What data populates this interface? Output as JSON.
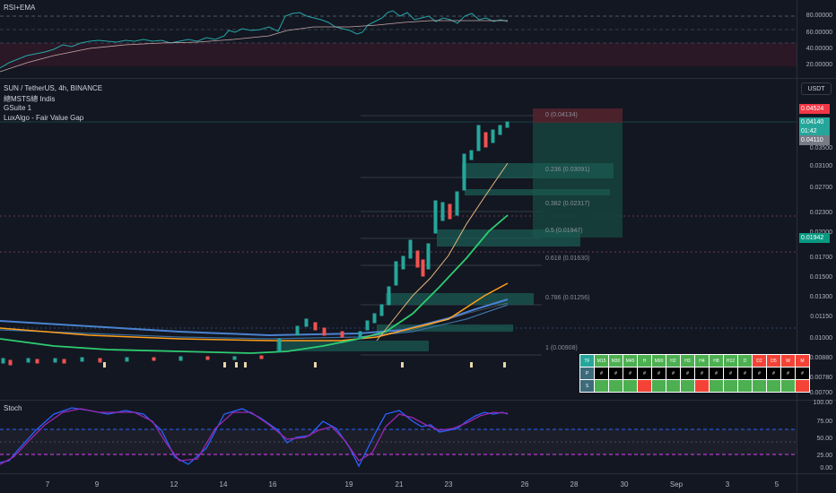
{
  "rsi_pane": {
    "title": "RSI+EMA",
    "ticks": [
      "80.00000",
      "60.00000",
      "40.00000",
      "20.00000"
    ]
  },
  "main_pane": {
    "title": "SUN / TetherUS, 4h, BINANCE",
    "indicators": [
      "總MSTS總 Indis",
      "GSuite 1",
      "LuxAlgo - Fair Value Gap"
    ],
    "currency_button": "USDT",
    "price_tags": {
      "top": "0.04524",
      "current": "0.04140",
      "countdown": "01:42",
      "prev": "0.04110",
      "mid": "0.01942"
    },
    "price_ticks": [
      "0.03500",
      "0.03100",
      "0.02700",
      "0.02300",
      "0.02000",
      "0.01700",
      "0.01500",
      "0.01300",
      "0.01150",
      "0.01000",
      "0.00880",
      "0.00780",
      "0.00700"
    ],
    "fib_levels": [
      "0 (0.04134)",
      "0.236 (0.03091)",
      "0.382 (0.02317)",
      "0.5 (0.01947)",
      "0.618 (0.01630)",
      "0.786 (0.01256)",
      "1 (0.00908)"
    ]
  },
  "mtf_table": {
    "headers": [
      "TF",
      "M15",
      "M30",
      "M45",
      "H",
      "M90",
      "H2",
      "H3",
      "H4",
      "H8",
      "H12",
      "D",
      "D2",
      "D5",
      "W",
      "M"
    ],
    "row_p_label": "P",
    "row_s_label": "S",
    "p_values": [
      "#",
      "#",
      "#",
      "#",
      "#",
      "#",
      "#",
      "#",
      "#",
      "#",
      "#",
      "#",
      "#",
      "#",
      "#"
    ],
    "header_colors": [
      "#26a69a",
      "#4caf50",
      "#4caf50",
      "#4caf50",
      "#4caf50",
      "#4caf50",
      "#4caf50",
      "#4caf50",
      "#4caf50",
      "#4caf50",
      "#4caf50",
      "#4caf50",
      "#f44336",
      "#f44336",
      "#f44336",
      "#f44336"
    ],
    "s_colors": [
      "#4caf50",
      "#4caf50",
      "#4caf50",
      "#f44336",
      "#4caf50",
      "#4caf50",
      "#4caf50",
      "#f44336",
      "#4caf50",
      "#4caf50",
      "#4caf50",
      "#4caf50",
      "#4caf50",
      "#4caf50",
      "#f44336"
    ]
  },
  "stoch_pane": {
    "title": "Stoch",
    "ticks": [
      "100.00",
      "75.00",
      "50.00",
      "25.00",
      "0.00"
    ]
  },
  "x_axis": {
    "labels": [
      "7",
      "9",
      "12",
      "14",
      "16",
      "19",
      "21",
      "23",
      "26",
      "28",
      "30",
      "Sep",
      "3",
      "5"
    ]
  }
}
